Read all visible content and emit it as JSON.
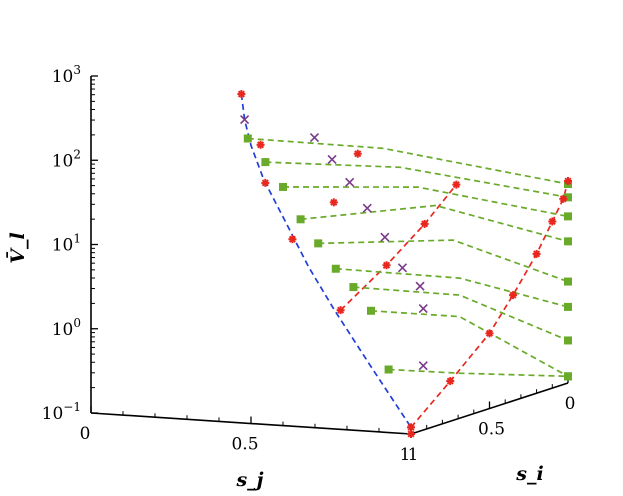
{
  "chart_data": {
    "type": "3d-line-scatter",
    "title": "",
    "ylabel": "V̄_l",
    "x_axis_label": "s_j",
    "depth_axis_label": "s_i",
    "y_scale": "log10",
    "ylim": [
      0.1,
      1000
    ],
    "y_ticks": [
      {
        "value": 0.1,
        "base": "10",
        "exp": "−1"
      },
      {
        "value": 1,
        "base": "10",
        "exp": "0"
      },
      {
        "value": 10,
        "base": "10",
        "exp": "1"
      },
      {
        "value": 100,
        "base": "10",
        "exp": "2"
      },
      {
        "value": 1000,
        "base": "10",
        "exp": "3"
      }
    ],
    "x_ticks": [
      "0",
      "0.5",
      "1"
    ],
    "depth_ticks": [
      "1",
      "0.5",
      "0"
    ],
    "series": [
      {
        "name": "blue-boundary",
        "color": "#1f3fd8",
        "style": "dashed",
        "marker": "none",
        "points": [
          [
            0.5,
            0,
            800
          ],
          [
            0.5,
            0,
            150
          ],
          [
            0.55,
            0,
            55
          ],
          [
            0.62,
            0,
            22
          ],
          [
            0.7,
            0,
            8
          ],
          [
            0.78,
            0,
            2.6
          ],
          [
            0.9,
            0,
            0.5
          ],
          [
            1,
            0,
            0.1
          ]
        ]
      },
      {
        "name": "red-boundary",
        "color": "#e8271e",
        "style": "dashed",
        "marker": "star",
        "points": [
          [
            1,
            0,
            0.1
          ],
          [
            1,
            0.2,
            0.45
          ],
          [
            1,
            0.4,
            2.1
          ],
          [
            1,
            0.6,
            7.5
          ],
          [
            1,
            0.8,
            22
          ],
          [
            1,
            1,
            33
          ]
        ]
      },
      {
        "name": "red-interior",
        "color": "#e8271e",
        "style": "dashed",
        "marker": "star",
        "points": [
          [
            0.5,
            0,
            800
          ],
          [
            0.5,
            0.1,
            190
          ],
          [
            0.5,
            0.1,
            68
          ],
          [
            0.6,
            0.1,
            40
          ],
          [
            0.65,
            0.1,
            16
          ],
          [
            0.7,
            0.15,
            2.7
          ],
          [
            0.8,
            0.15,
            7.5
          ],
          [
            0.9,
            0.2,
            21
          ],
          [
            1,
            0.2,
            55
          ]
        ]
      }
    ],
    "marker_groups": [
      {
        "name": "green-squares",
        "color": "#6aaa2a",
        "marker": "square"
      },
      {
        "name": "purple-crosses",
        "color": "#7a3a8a",
        "marker": "x"
      },
      {
        "name": "red-stars",
        "color": "#e8271e",
        "marker": "star"
      }
    ],
    "green_level_lines": 9,
    "green_line_color": "#6aaa2a",
    "green_line_style": "dashed",
    "levels": [
      {
        "start": 240,
        "mid": 130,
        "end": 23
      },
      {
        "start": 130,
        "mid": 80,
        "end": 16
      },
      {
        "start": 68,
        "mid": 48,
        "end": 9.5
      },
      {
        "start": 29,
        "mid": 30,
        "end": 4.8
      },
      {
        "start": 15.5,
        "mid": 12,
        "end": 1.6
      },
      {
        "start": 8,
        "mid": 4.3,
        "end": 0.8
      },
      {
        "start": 5,
        "mid": 2.7,
        "end": 0.32
      },
      {
        "start": 2.7,
        "mid": 1.5,
        "end": 0.12
      },
      {
        "start": 0.56,
        "mid": 0.32,
        "end": 0.12
      }
    ]
  }
}
